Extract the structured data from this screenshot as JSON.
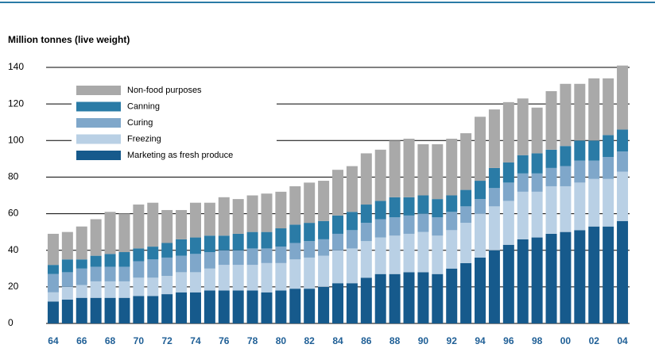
{
  "chart_data": {
    "type": "stacked-bar",
    "y_axis_label": "Million tonnes (live weight)",
    "categories": [
      "64",
      null,
      "66",
      null,
      "68",
      null,
      "70",
      null,
      "72",
      null,
      "74",
      null,
      "76",
      null,
      "78",
      null,
      "80",
      null,
      "82",
      null,
      "84",
      null,
      "86",
      null,
      "88",
      null,
      "90",
      null,
      "92",
      null,
      "94",
      null,
      "96",
      null,
      "98",
      null,
      "00",
      null,
      "02",
      null,
      "04"
    ],
    "series": [
      {
        "name": "Marketing as fresh produce",
        "color": "#165a8c",
        "values": [
          12,
          13,
          14,
          14,
          14,
          14,
          15,
          15,
          16,
          17,
          17,
          18,
          18,
          18,
          18,
          17,
          18,
          19,
          19,
          20,
          22,
          22,
          25,
          27,
          27,
          28,
          28,
          27,
          30,
          33,
          36,
          40,
          43,
          46,
          47,
          49,
          50,
          51,
          53,
          53,
          56
        ]
      },
      {
        "name": "Freezing",
        "color": "#b9d0e5",
        "values": [
          5,
          7,
          7,
          9,
          9,
          9,
          10,
          10,
          10,
          11,
          11,
          12,
          14,
          14,
          14,
          16,
          15,
          16,
          17,
          17,
          18,
          19,
          20,
          20,
          21,
          21,
          22,
          21,
          21,
          22,
          24,
          24,
          24,
          26,
          25,
          26,
          25,
          26,
          26,
          26,
          27
        ]
      },
      {
        "name": "Curing",
        "color": "#7fa7ca",
        "values": [
          10,
          8,
          9,
          8,
          8,
          8,
          9,
          10,
          10,
          9,
          10,
          9,
          8,
          8,
          9,
          8,
          9,
          9,
          9,
          9,
          9,
          10,
          10,
          10,
          10,
          10,
          10,
          10,
          10,
          9,
          8,
          10,
          10,
          10,
          10,
          10,
          11,
          12,
          10,
          12,
          11
        ]
      },
      {
        "name": "Canning",
        "color": "#2a7ba6",
        "values": [
          5,
          7,
          5,
          6,
          7,
          8,
          7,
          7,
          8,
          9,
          9,
          9,
          8,
          9,
          9,
          9,
          10,
          10,
          10,
          10,
          10,
          10,
          10,
          10,
          11,
          10,
          10,
          10,
          9,
          9,
          10,
          11,
          11,
          10,
          11,
          10,
          11,
          11,
          11,
          12,
          12
        ]
      },
      {
        "name": "Non-food purposes",
        "color": "#a9a9a9",
        "values": [
          17,
          15,
          18,
          20,
          23,
          21,
          24,
          24,
          18,
          16,
          19,
          18,
          21,
          19,
          20,
          21,
          20,
          21,
          22,
          22,
          25,
          25,
          28,
          28,
          31,
          32,
          28,
          30,
          31,
          31,
          35,
          32,
          33,
          31,
          25,
          32,
          34,
          31,
          34,
          31,
          35
        ]
      }
    ],
    "ylim": [
      0,
      140
    ],
    "yticks": [
      0,
      20,
      40,
      60,
      80,
      100,
      120,
      140
    ],
    "grid": true,
    "legend": "upper left"
  }
}
